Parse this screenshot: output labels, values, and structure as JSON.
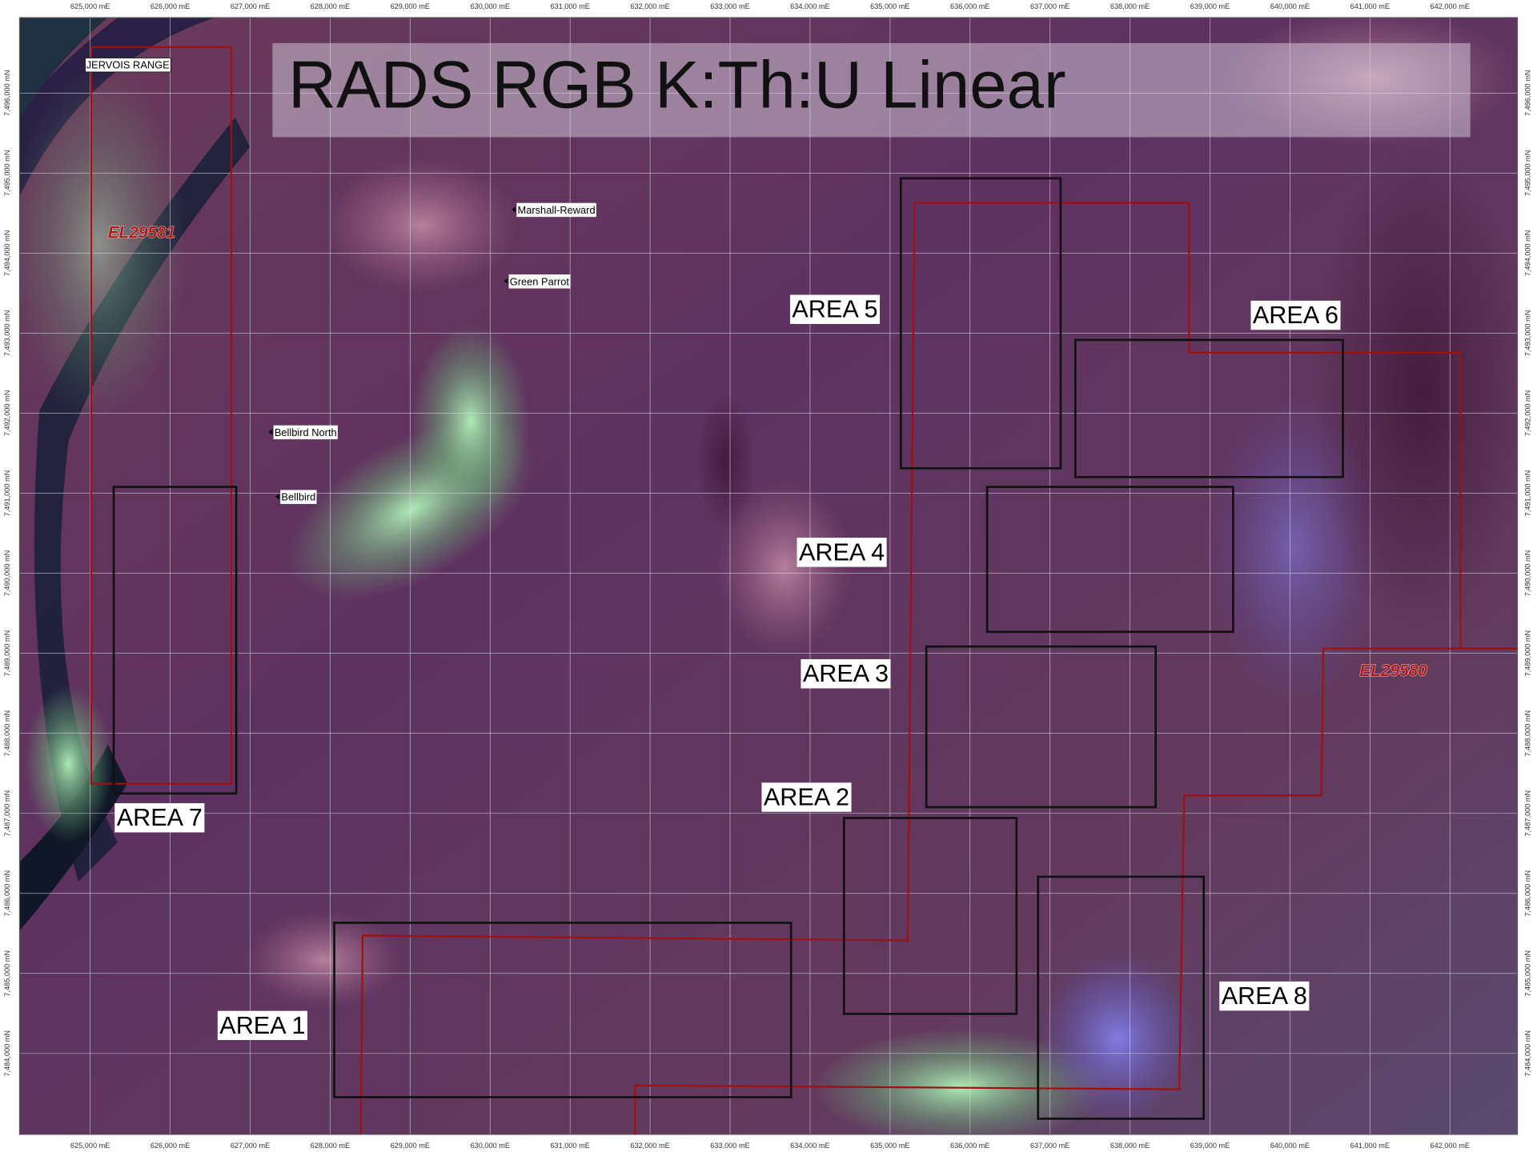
{
  "title": "RADS RGB  K:Th:U Linear",
  "eastings": [
    "625,000 mE",
    "626,000 mE",
    "627,000 mE",
    "628,000 mE",
    "629,000 mE",
    "630,000 mE",
    "631,000 mE",
    "632,000 mE",
    "633,000 mE",
    "634,000 mE",
    "635,000 mE",
    "636,000 mE",
    "637,000 mE",
    "638,000 mE",
    "639,000 mE",
    "640,000 mE",
    "641,000 mE",
    "642,000 mE"
  ],
  "northings": [
    "7,496,000 mN",
    "7,495,000 mN",
    "7,494,000 mN",
    "7,493,000 mN",
    "7,492,000 mN",
    "7,491,000 mN",
    "7,490,000 mN",
    "7,489,000 mN",
    "7,488,000 mN",
    "7,487,000 mN",
    "7,486,000 mN",
    "7,485,000 mN",
    "7,484,000 mN"
  ],
  "region_label": "JERVOIS RANGE",
  "places": [
    "Marshall-Reward",
    "Green Parrot",
    "Bellbird North",
    "Bellbird"
  ],
  "tenements": [
    "EL29581",
    "EL29580"
  ],
  "areas": [
    "AREA  1",
    "AREA 2",
    "AREA 3",
    "AREA 4",
    "AREA 5",
    "AREA 6",
    "AREA 7",
    "AREA 8"
  ]
}
